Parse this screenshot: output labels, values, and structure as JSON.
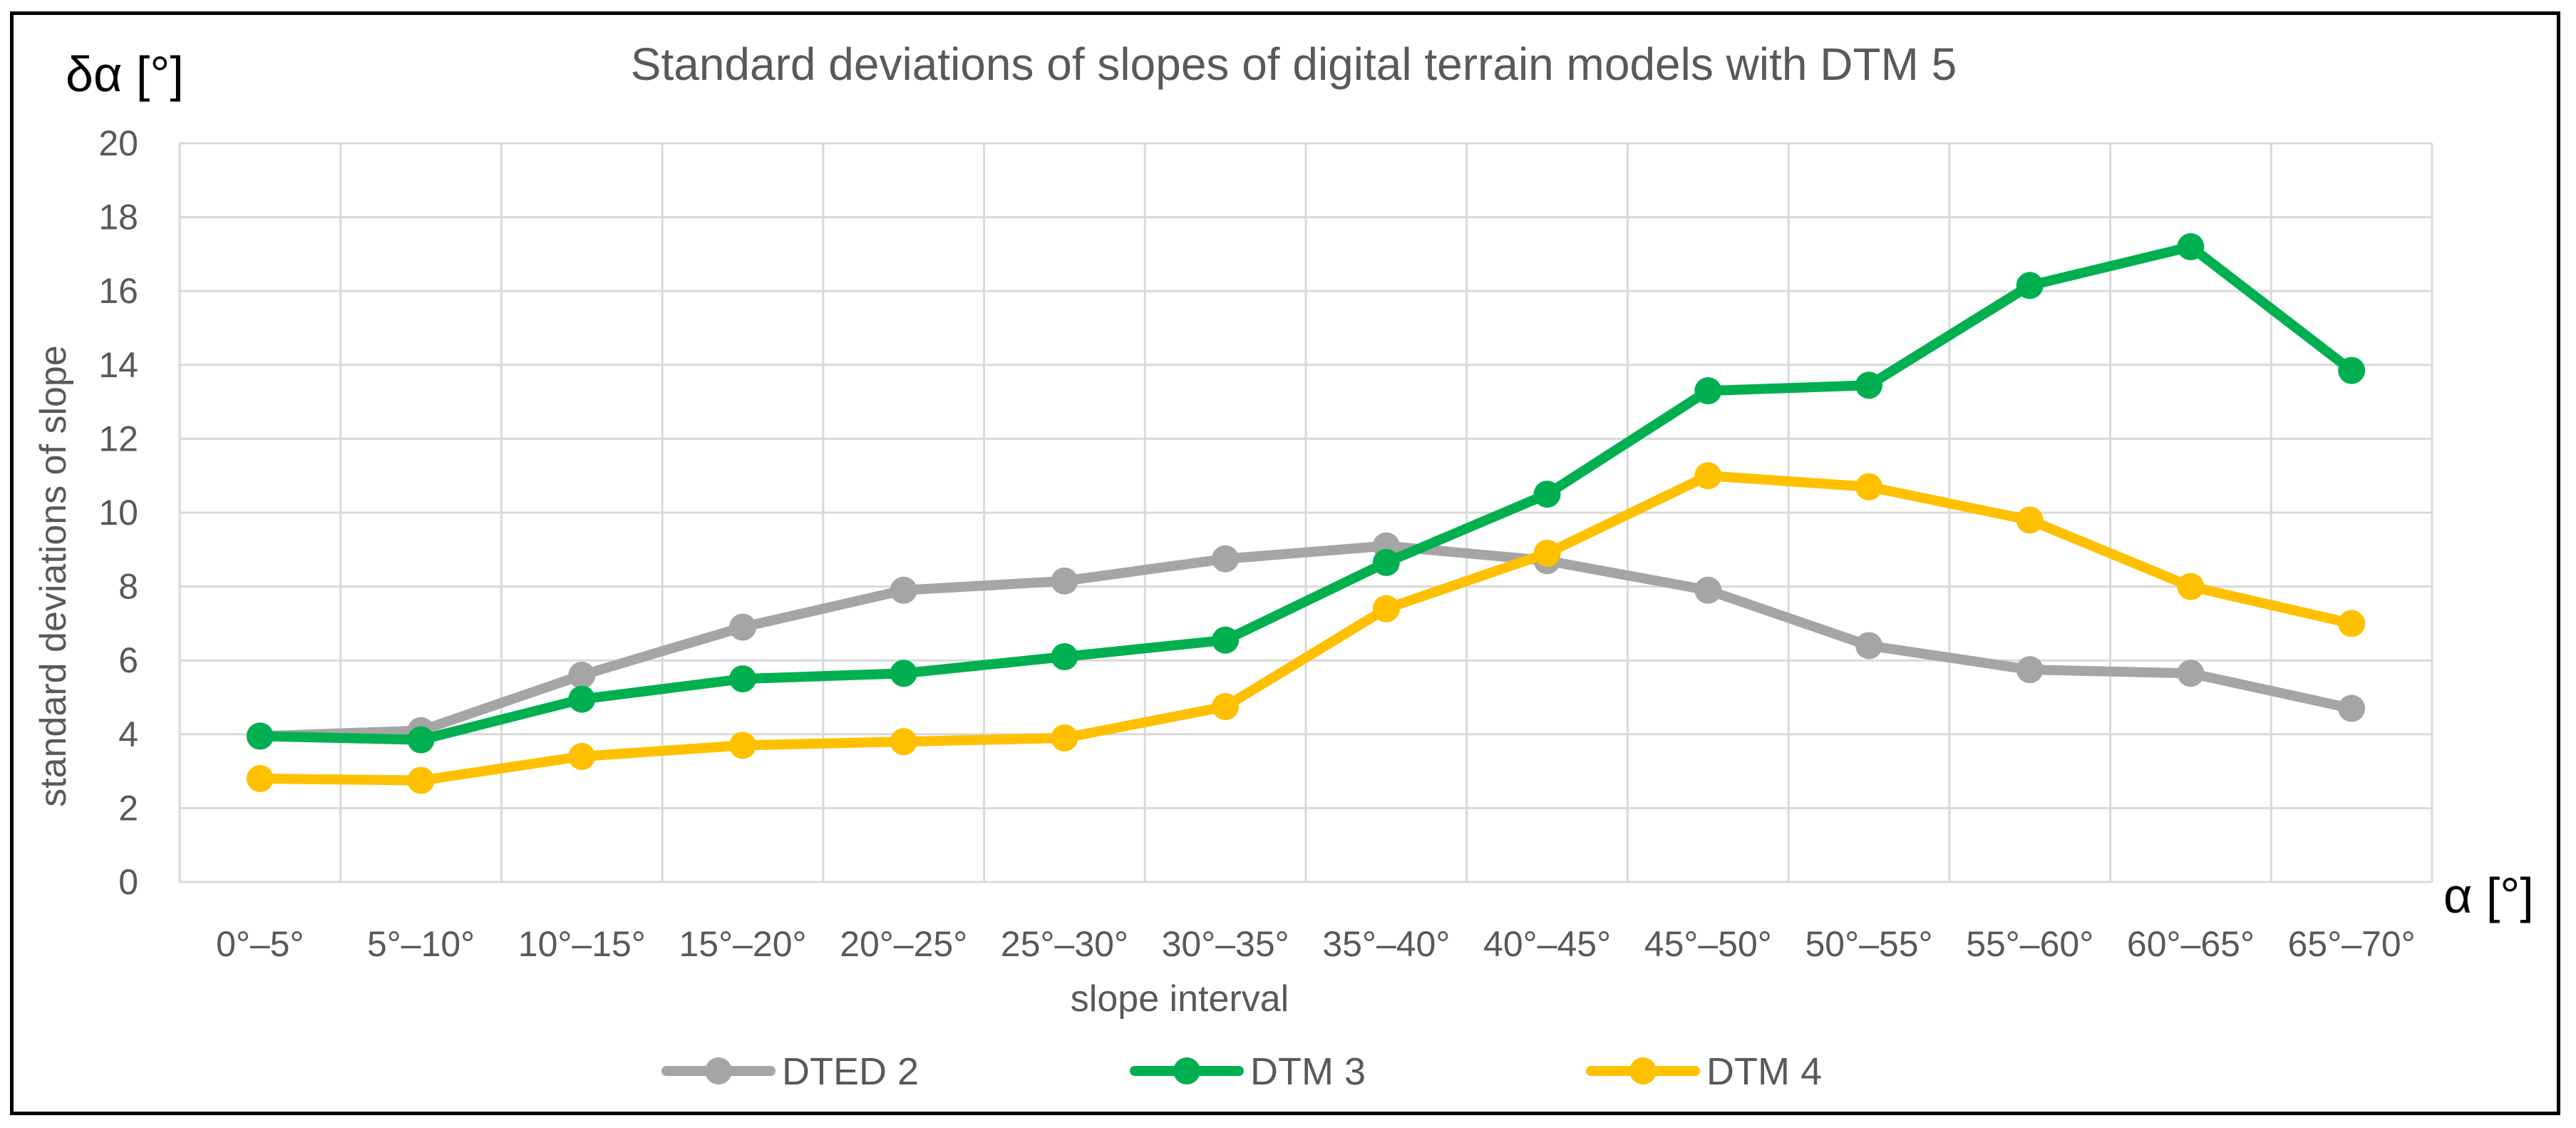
{
  "chart_data": {
    "type": "line",
    "title": "Standard deviations of slopes of digital terrain models with DTM 5",
    "xlabel": "slope interval",
    "ylabel": "standard deviations of slope",
    "y_unit_label": "δα [°]",
    "x_unit_label": "α [°]",
    "ylim": [
      0,
      20
    ],
    "yticks": [
      0,
      2,
      4,
      6,
      8,
      10,
      12,
      14,
      16,
      18,
      20
    ],
    "grid": true,
    "legend_position": "bottom",
    "categories": [
      "0°–5°",
      "5°–10°",
      "10°–15°",
      "15°–20°",
      "20°–25°",
      "25°–30°",
      "30°–35°",
      "35°–40°",
      "40°–45°",
      "45°–50°",
      "50°–55°",
      "55°–60°",
      "60°–65°",
      "65°–70°"
    ],
    "series": [
      {
        "name": "DTED 2",
        "color": "#A5A5A5",
        "values": [
          3.95,
          4.1,
          5.6,
          6.9,
          7.9,
          8.15,
          8.75,
          9.1,
          8.7,
          7.9,
          6.4,
          5.75,
          5.65,
          4.7
        ]
      },
      {
        "name": "DTM 3",
        "color": "#00B050",
        "values": [
          3.95,
          3.85,
          4.95,
          5.5,
          5.65,
          6.1,
          6.55,
          8.65,
          10.5,
          13.3,
          13.45,
          16.15,
          17.2,
          13.85
        ]
      },
      {
        "name": "DTM 4",
        "color": "#FFC000",
        "values": [
          2.8,
          2.75,
          3.4,
          3.7,
          3.8,
          3.9,
          4.75,
          7.4,
          8.9,
          11.0,
          10.7,
          9.8,
          8.0,
          7.0
        ]
      }
    ]
  }
}
